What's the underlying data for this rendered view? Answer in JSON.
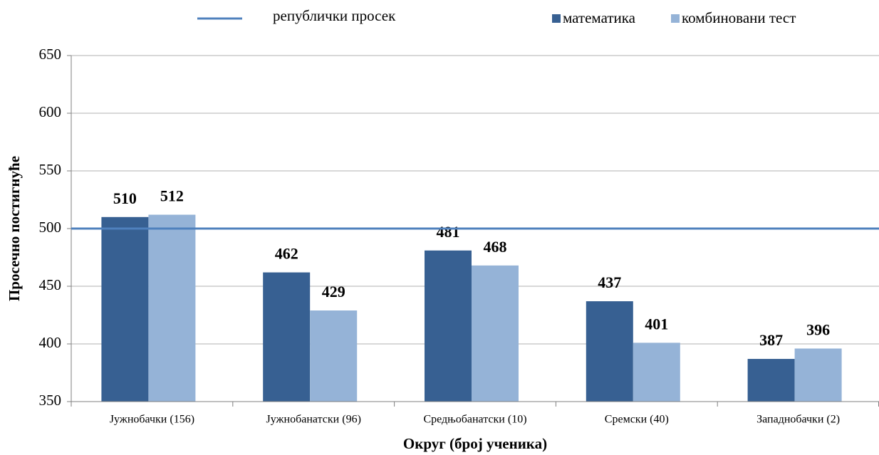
{
  "chart_data": {
    "type": "bar",
    "categories": [
      "Јужнобачки (156)",
      "Јужнобанатски (96)",
      "Средњобанатски (10)",
      "Сремски (40)",
      "Западнобачки (2)"
    ],
    "series": [
      {
        "name": "математика",
        "color": "#376092",
        "values": [
          510,
          462,
          481,
          437,
          387
        ]
      },
      {
        "name": "комбиновани тест",
        "color": "#95b3d7",
        "values": [
          512,
          429,
          468,
          401,
          396
        ]
      }
    ],
    "reference_line": {
      "name": "републички просек",
      "value": 500,
      "color": "#4f81bd"
    },
    "ylabel": "Просечно постигнуће",
    "xlabel": "Округ (број ученика)",
    "ylim": [
      350,
      650
    ],
    "yticks": [
      350,
      400,
      450,
      500,
      550,
      600,
      650
    ],
    "grid": true
  }
}
